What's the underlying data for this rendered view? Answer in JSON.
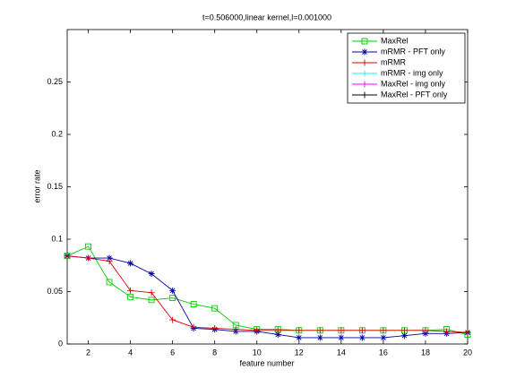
{
  "chart_data": {
    "type": "line",
    "title": "t=0.506000,linear kernel,l=0.001000",
    "x_label": "feature number",
    "y_label": "error rate",
    "x": [
      1,
      2,
      3,
      4,
      5,
      6,
      7,
      8,
      9,
      10,
      11,
      12,
      13,
      14,
      15,
      16,
      17,
      18,
      19,
      20
    ],
    "xlim": [
      1,
      20
    ],
    "xticks": [
      2,
      4,
      6,
      8,
      10,
      12,
      14,
      16,
      18,
      20
    ],
    "ylim": [
      0,
      0.3
    ],
    "yticks": [
      0,
      0.05,
      0.1,
      0.15,
      0.2,
      0.25
    ],
    "legend": "upper right",
    "series": [
      {
        "name": "MaxRel",
        "color": "#00cc00",
        "marker": "square",
        "values": [
          0.084,
          0.093,
          0.059,
          0.045,
          0.042,
          0.044,
          0.038,
          0.034,
          0.018,
          0.014,
          0.014,
          0.013,
          0.013,
          0.013,
          0.013,
          0.013,
          0.013,
          0.013,
          0.014,
          0.009
        ]
      },
      {
        "name": "mRMR - PFT only",
        "color": "#0000aa",
        "marker": "star",
        "values": [
          0.084,
          0.082,
          0.082,
          0.077,
          0.067,
          0.051,
          0.015,
          0.014,
          0.012,
          0.012,
          0.009,
          0.006,
          0.006,
          0.006,
          0.006,
          0.006,
          0.008,
          0.01,
          0.01,
          0.011
        ]
      },
      {
        "name": "mRMR",
        "color": "#dd0000",
        "marker": "plus",
        "values": [
          0.084,
          0.082,
          0.079,
          0.051,
          0.049,
          0.023,
          0.016,
          0.015,
          0.014,
          0.013,
          0.013,
          0.013,
          0.013,
          0.013,
          0.013,
          0.013,
          0.013,
          0.013,
          0.012,
          0.011
        ]
      },
      {
        "name": "mRMR - img only",
        "color": "#00ffff",
        "marker": "plus",
        "values": [
          null,
          null,
          null,
          null,
          null,
          null,
          null,
          null,
          null,
          null,
          null,
          null,
          null,
          null,
          null,
          null,
          null,
          null,
          null,
          null
        ]
      },
      {
        "name": "MaxRel - img only",
        "color": "#ff00ff",
        "marker": "plus",
        "values": [
          null,
          null,
          null,
          null,
          null,
          null,
          null,
          null,
          null,
          null,
          null,
          null,
          null,
          null,
          null,
          null,
          null,
          null,
          null,
          null
        ]
      },
      {
        "name": "MaxRel - PFT only",
        "color": "#000000",
        "marker": "plus",
        "values": [
          null,
          null,
          null,
          null,
          null,
          null,
          null,
          null,
          null,
          null,
          null,
          null,
          null,
          null,
          null,
          null,
          null,
          null,
          null,
          null
        ]
      }
    ]
  }
}
